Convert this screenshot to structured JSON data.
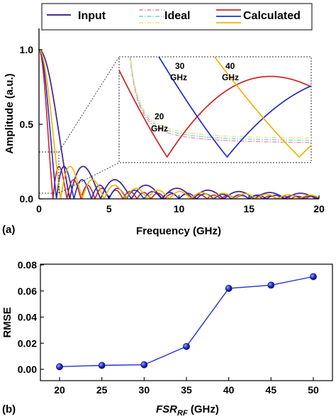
{
  "chart_data": [
    {
      "type": "line",
      "panel_label": "(a)",
      "xlabel": "Frequency (GHz)",
      "ylabel": "Amplitude (a.u.)",
      "xlim": [
        0,
        20
      ],
      "ylim": [
        0,
        1.0
      ],
      "x_ticks": [
        "0",
        "5",
        "10",
        "15",
        "20"
      ],
      "y_ticks": [
        "0.0",
        "0.5",
        "1.0"
      ],
      "legend": {
        "position": "top",
        "entries": [
          {
            "label": "Input",
            "style": "solid",
            "colors": [
              "#4b2a8e"
            ]
          },
          {
            "label": "Ideal",
            "style": "dash-dot",
            "colors": [
              "#f08ca0",
              "#7ad0e8",
              "#f0e070"
            ]
          },
          {
            "label": "Calculated",
            "style": "solid",
            "colors": [
              "#cc2222",
              "#1f2bc8",
              "#f0b400"
            ]
          }
        ]
      },
      "series": [
        {
          "name": "Input",
          "color": "#4b2a8e",
          "first_null_GHz": 2.2
        },
        {
          "color": "#cc2222",
          "fsr_label": "20 GHz",
          "first_null_GHz": 1.0
        },
        {
          "color": "#1f2bc8",
          "fsr_label": "30 GHz",
          "first_null_GHz": 1.25
        },
        {
          "color": "#f0b400",
          "fsr_label": "40 GHz",
          "first_null_GHz": 1.55
        }
      ],
      "inset": {
        "zoom_region_GHz": [
          0.8,
          1.6
        ],
        "zoom_region_amp": [
          0,
          0.27
        ],
        "labels": [
          "20\nGHz",
          "30\nGHz",
          "40\nGHz"
        ]
      },
      "grid": false
    },
    {
      "type": "scatter",
      "panel_label": "(b)",
      "xlabel_main": "FSR",
      "xlabel_sub": "RF",
      "xlabel_unit": " (GHz)",
      "ylabel": "RMSE",
      "categories": [
        20,
        25,
        30,
        35,
        40,
        45,
        50
      ],
      "x_ticks": [
        "20",
        "25",
        "30",
        "35",
        "40",
        "45",
        "50"
      ],
      "y_ticks": [
        "0.00",
        "0.02",
        "0.04",
        "0.06",
        "0.08"
      ],
      "ylim": [
        0,
        0.08
      ],
      "series": [
        {
          "color": "#1f2bc8",
          "values": [
            0.002,
            0.003,
            0.0035,
            0.0175,
            0.062,
            0.0645,
            0.071
          ]
        }
      ],
      "grid": false
    }
  ]
}
